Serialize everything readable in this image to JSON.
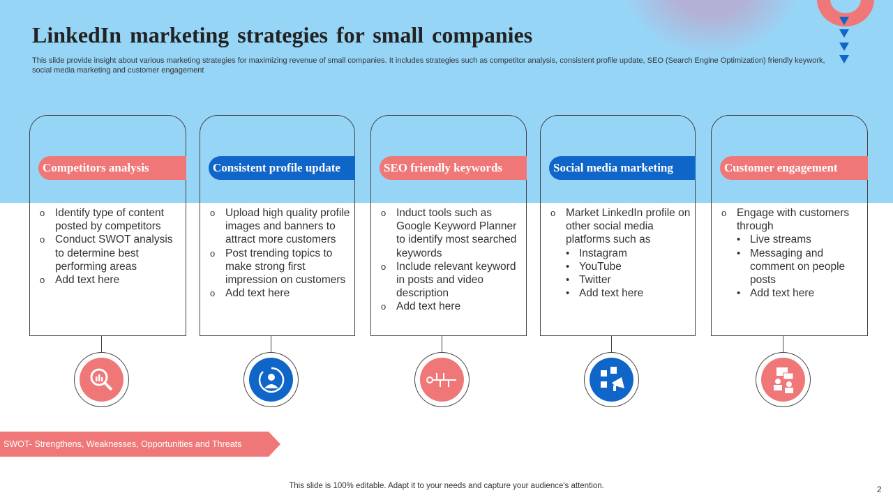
{
  "title": "LinkedIn marketing strategies for small companies",
  "subtitle": "This slide provide insight about various marketing strategies for maximizing revenue of small companies. It includes strategies such as competitor analysis, consistent profile update, SEO (Search Engine Optimization) friendly keywork,  social media marketing and customer engagement",
  "colors": {
    "background_top": "#97d5f7",
    "coral": "#f07777",
    "blue": "#0f66c8"
  },
  "cards": [
    {
      "heading": "Competitors analysis",
      "color": "#f07777",
      "icon": "magnifier-chart-icon",
      "items": [
        {
          "level": 1,
          "text": "Identify  type  of content posted by competitors"
        },
        {
          "level": 1,
          "text": "Conduct SWOT analysis to determine best performing areas"
        },
        {
          "level": 1,
          "text": "Add text here"
        }
      ]
    },
    {
      "heading": "Consistent profile update",
      "color": "#0f66c8",
      "icon": "user-refresh-icon",
      "items": [
        {
          "level": 1,
          "text": "Upload high quality profile images and banners to attract more customers"
        },
        {
          "level": 1,
          "text": "Post trending topics to make strong first impression on customers"
        },
        {
          "level": 1,
          "text": "Add text here"
        }
      ]
    },
    {
      "heading": "SEO friendly keywords",
      "color": "#f07777",
      "icon": "keyword-key-icon",
      "items": [
        {
          "level": 1,
          "text": "Induct tools such as Google Keyword Planner to identify most searched keywords"
        },
        {
          "level": 1,
          "text": "Include  relevant keyword in posts and video description"
        },
        {
          "level": 1,
          "text": "Add text here"
        }
      ]
    },
    {
      "heading": "Social media marketing",
      "color": "#0f66c8",
      "icon": "megaphone-social-icon",
      "items": [
        {
          "level": 1,
          "text": "Market LinkedIn profile on other social media platforms such as"
        },
        {
          "level": 2,
          "text": "Instagram"
        },
        {
          "level": 2,
          "text": "YouTube"
        },
        {
          "level": 2,
          "text": "Twitter"
        },
        {
          "level": 2,
          "text": "Add text here"
        }
      ]
    },
    {
      "heading": "Customer engagement",
      "color": "#f07777",
      "icon": "people-chat-icon",
      "items": [
        {
          "level": 1,
          "text": "Engage with customers through"
        },
        {
          "level": 2,
          "text": "Live streams"
        },
        {
          "level": 2,
          "text": "Messaging and comment on people posts"
        },
        {
          "level": 2,
          "text": "Add text here"
        }
      ]
    }
  ],
  "swot_note": "SWOT- Strengthens, Weaknesses, Opportunities  and Threats",
  "footer": "This slide is 100% editable. Adapt it to your needs and capture your audience's attention.",
  "page_number": "2"
}
